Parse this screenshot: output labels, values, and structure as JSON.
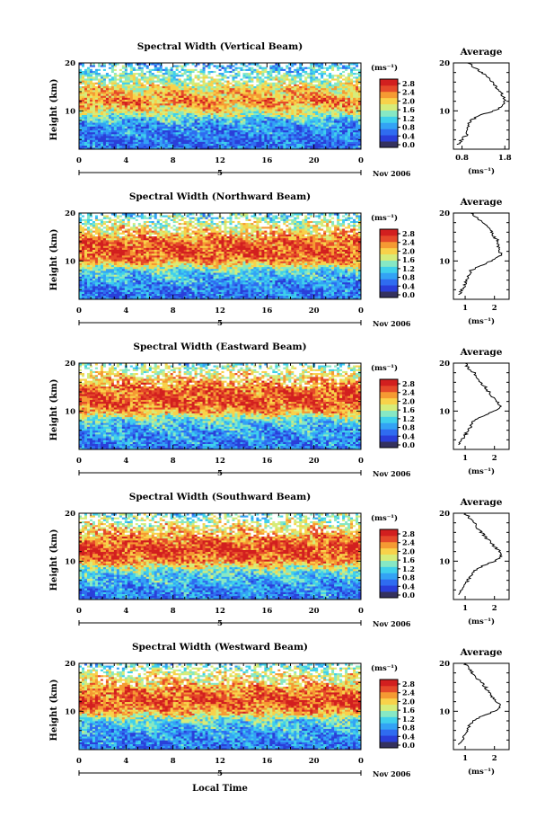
{
  "figure": {
    "xlabel": "Local Time",
    "date_label": "Nov 2006",
    "day_marker": "5",
    "ylabel": "Height (km)",
    "colorbar_unit": "(ms⁻¹)",
    "colorbar_ticks": [
      "0.0",
      "0.4",
      "0.8",
      "1.2",
      "1.6",
      "2.0",
      "2.4",
      "2.8"
    ],
    "colormap": [
      "#34315f",
      "#2a3fd9",
      "#2f6cf0",
      "#33a3f5",
      "#3fd0ec",
      "#86e8c4",
      "#d6ec7a",
      "#f8d24a",
      "#f59a33",
      "#e5492a",
      "#d21f1f"
    ],
    "avg_title": "Average",
    "avg_xlabel": "(ms⁻¹)"
  },
  "chart_data": [
    {
      "type": "heatmap",
      "title": "Spectral Width (Vertical Beam)",
      "xlabel": "Local Time",
      "ylabel": "Height (km)",
      "xlim": [
        0,
        24
      ],
      "ylim": [
        2,
        20
      ],
      "x_ticks": [
        "0",
        "4",
        "8",
        "12",
        "16",
        "20",
        "0"
      ],
      "y_ticks": [
        "20",
        "10"
      ],
      "colorbar": {
        "unit": "(ms⁻¹)",
        "range": [
          0,
          3.0
        ]
      },
      "heights_km": [
        2,
        4,
        6,
        8,
        10,
        12,
        14,
        16,
        18,
        20
      ],
      "mean_width_ms": [
        0.5,
        0.4,
        0.6,
        0.9,
        1.8,
        2.3,
        2.0,
        1.6,
        1.2,
        0.8
      ],
      "average_profile": {
        "title": "Average",
        "xlabel": "(ms⁻¹)",
        "x_ticks": [
          "0.8",
          "1.8"
        ],
        "xlim": [
          0.6,
          1.9
        ],
        "y_ticks": [
          "20",
          "10"
        ],
        "height_km": [
          3,
          4,
          5,
          6,
          7,
          8,
          9,
          10,
          11,
          12,
          13,
          14,
          15,
          16,
          17,
          18,
          19,
          20
        ],
        "width_ms": [
          0.7,
          0.8,
          0.9,
          0.9,
          0.95,
          1.0,
          1.2,
          1.55,
          1.75,
          1.8,
          1.75,
          1.7,
          1.6,
          1.5,
          1.4,
          1.25,
          1.1,
          0.95
        ]
      }
    },
    {
      "type": "heatmap",
      "title": "Spectral Width (Northward Beam)",
      "xlabel": "Local Time",
      "ylabel": "Height (km)",
      "xlim": [
        0,
        24
      ],
      "ylim": [
        2,
        20
      ],
      "x_ticks": [
        "0",
        "4",
        "8",
        "12",
        "16",
        "20",
        "0"
      ],
      "y_ticks": [
        "20",
        "10"
      ],
      "colorbar": {
        "unit": "(ms⁻¹)",
        "range": [
          0,
          3.0
        ]
      },
      "heights_km": [
        2,
        4,
        6,
        8,
        10,
        12,
        14,
        16,
        18,
        20
      ],
      "mean_width_ms": [
        0.5,
        0.5,
        0.8,
        1.1,
        2.3,
        2.6,
        2.4,
        2.0,
        1.6,
        1.0
      ],
      "average_profile": {
        "title": "Average",
        "xlabel": "(ms⁻¹)",
        "x_ticks": [
          "1",
          "2"
        ],
        "xlim": [
          0.6,
          2.5
        ],
        "y_ticks": [
          "20",
          "10"
        ],
        "height_km": [
          3,
          4,
          5,
          6,
          7,
          8,
          9,
          10,
          11,
          12,
          13,
          14,
          15,
          16,
          17,
          18,
          19,
          20
        ],
        "width_ms": [
          0.8,
          0.9,
          1.0,
          1.05,
          1.1,
          1.2,
          1.5,
          1.9,
          2.2,
          2.2,
          2.1,
          2.15,
          2.0,
          1.9,
          1.8,
          1.6,
          1.4,
          1.2
        ]
      }
    },
    {
      "type": "heatmap",
      "title": "Spectral Width (Eastward Beam)",
      "xlabel": "Local Time",
      "ylabel": "Height (km)",
      "xlim": [
        0,
        24
      ],
      "ylim": [
        2,
        20
      ],
      "x_ticks": [
        "0",
        "4",
        "8",
        "12",
        "16",
        "20",
        "0"
      ],
      "y_ticks": [
        "20",
        "10"
      ],
      "colorbar": {
        "unit": "(ms⁻¹)",
        "range": [
          0,
          3.0
        ]
      },
      "heights_km": [
        2,
        4,
        6,
        8,
        10,
        12,
        14,
        16,
        18,
        20
      ],
      "mean_width_ms": [
        0.5,
        0.6,
        0.8,
        1.1,
        2.2,
        2.6,
        2.5,
        2.2,
        1.8,
        1.2
      ],
      "average_profile": {
        "title": "Average",
        "xlabel": "(ms⁻¹)",
        "x_ticks": [
          "1",
          "2"
        ],
        "xlim": [
          0.6,
          2.5
        ],
        "y_ticks": [
          "20",
          "10"
        ],
        "height_km": [
          3,
          4,
          5,
          6,
          7,
          8,
          9,
          10,
          11,
          12,
          13,
          14,
          15,
          16,
          17,
          18,
          19,
          20
        ],
        "width_ms": [
          0.8,
          0.9,
          1.0,
          1.1,
          1.2,
          1.3,
          1.6,
          2.0,
          2.2,
          2.1,
          1.9,
          1.8,
          1.7,
          1.5,
          1.4,
          1.3,
          1.1,
          1.0
        ]
      }
    },
    {
      "type": "heatmap",
      "title": "Spectral Width (Southward Beam)",
      "xlabel": "Local Time",
      "ylabel": "Height (km)",
      "xlim": [
        0,
        24
      ],
      "ylim": [
        2,
        20
      ],
      "x_ticks": [
        "0",
        "4",
        "8",
        "12",
        "16",
        "20",
        "0"
      ],
      "y_ticks": [
        "20",
        "10"
      ],
      "colorbar": {
        "unit": "(ms⁻¹)",
        "range": [
          0,
          3.0
        ]
      },
      "heights_km": [
        2,
        4,
        6,
        8,
        10,
        12,
        14,
        16,
        18,
        20
      ],
      "mean_width_ms": [
        0.5,
        0.6,
        0.9,
        1.2,
        2.3,
        2.7,
        2.4,
        2.1,
        1.7,
        1.1
      ],
      "average_profile": {
        "title": "Average",
        "xlabel": "(ms⁻¹)",
        "x_ticks": [
          "1",
          "2"
        ],
        "xlim": [
          0.6,
          2.5
        ],
        "y_ticks": [
          "20",
          "10"
        ],
        "height_km": [
          3,
          4,
          5,
          6,
          7,
          8,
          9,
          10,
          11,
          12,
          13,
          14,
          15,
          16,
          17,
          18,
          19,
          20
        ],
        "width_ms": [
          0.8,
          0.9,
          1.0,
          1.1,
          1.2,
          1.3,
          1.6,
          2.0,
          2.25,
          2.2,
          2.0,
          1.85,
          1.7,
          1.55,
          1.4,
          1.3,
          1.15,
          1.0
        ]
      }
    },
    {
      "type": "heatmap",
      "title": "Spectral Width (Westward Beam)",
      "xlabel": "Local Time",
      "ylabel": "Height (km)",
      "xlim": [
        0,
        24
      ],
      "ylim": [
        2,
        20
      ],
      "x_ticks": [
        "0",
        "4",
        "8",
        "12",
        "16",
        "20",
        "0"
      ],
      "y_ticks": [
        "20",
        "10"
      ],
      "colorbar": {
        "unit": "(ms⁻¹)",
        "range": [
          0,
          3.0
        ]
      },
      "heights_km": [
        2,
        4,
        6,
        8,
        10,
        12,
        14,
        16,
        18,
        20
      ],
      "mean_width_ms": [
        0.5,
        0.6,
        0.8,
        1.1,
        2.2,
        2.6,
        2.4,
        2.0,
        1.7,
        1.1
      ],
      "average_profile": {
        "title": "Average",
        "xlabel": "(ms⁻¹)",
        "x_ticks": [
          "1",
          "2"
        ],
        "xlim": [
          0.6,
          2.5
        ],
        "y_ticks": [
          "20",
          "10"
        ],
        "height_km": [
          3,
          4,
          5,
          6,
          7,
          8,
          9,
          10,
          11,
          12,
          13,
          14,
          15,
          16,
          17,
          18,
          19,
          20
        ],
        "width_ms": [
          0.8,
          0.9,
          1.0,
          1.05,
          1.15,
          1.3,
          1.6,
          2.0,
          2.2,
          2.1,
          1.9,
          1.8,
          1.7,
          1.55,
          1.4,
          1.25,
          1.1,
          1.0
        ]
      }
    }
  ]
}
